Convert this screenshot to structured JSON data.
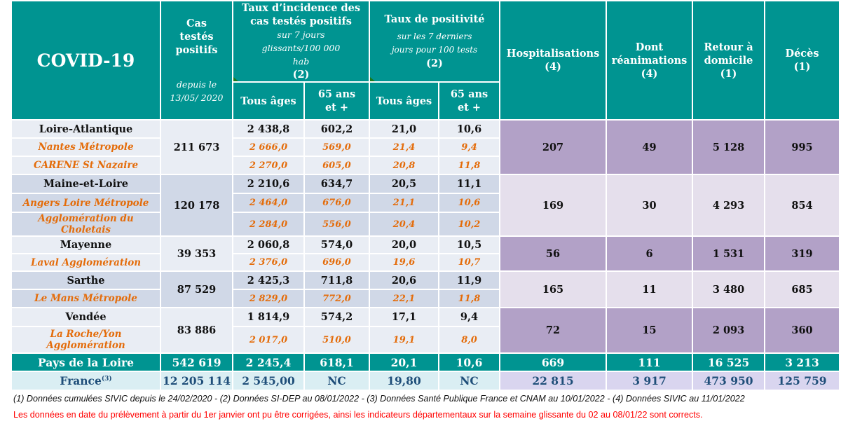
{
  "header": {
    "title": "COVID-19",
    "cas": {
      "label": "Cas testés positifs",
      "sub": "depuis le 13/05/ 2020"
    },
    "incidence": {
      "label": "Taux d’incidence des cas testés positifs",
      "sub": "sur 7 jours glissants/100 000 hab",
      "note": "(2)"
    },
    "positivite": {
      "label": "Taux de positivité",
      "sub": "sur les 7 derniers jours pour 100 tests",
      "note": "(2)"
    },
    "hosp": {
      "label": "Hospitalisations",
      "note": "(4)"
    },
    "rea": {
      "label": "Dont réanimations",
      "note": "(4)"
    },
    "retour": {
      "label": "Retour à domicile",
      "note": "(1)"
    },
    "deces": {
      "label": "Décès",
      "note": "(1)"
    },
    "tous_ages": "Tous âges",
    "plus65": "65 ans et +"
  },
  "departments": [
    {
      "name": "Loire-Atlantique",
      "cas": "211 673",
      "inc_all": "2 438,8",
      "inc_65": "602,2",
      "pos_all": "21,0",
      "pos_65": "10,6",
      "hosp": "207",
      "rea": "49",
      "retour": "5 128",
      "deces": "995",
      "subs": [
        {
          "name": "Nantes Métropole",
          "inc_all": "2 666,0",
          "inc_65": "569,0",
          "pos_all": "21,4",
          "pos_65": "9,4"
        },
        {
          "name": "CARENE St Nazaire",
          "inc_all": "2 270,0",
          "inc_65": "605,0",
          "pos_all": "20,8",
          "pos_65": "11,8"
        }
      ]
    },
    {
      "name": "Maine-et-Loire",
      "cas": "120 178",
      "inc_all": "2 210,6",
      "inc_65": "634,7",
      "pos_all": "20,5",
      "pos_65": "11,1",
      "hosp": "169",
      "rea": "30",
      "retour": "4 293",
      "deces": "854",
      "subs": [
        {
          "name": "Angers Loire Métropole",
          "inc_all": "2 464,0",
          "inc_65": "676,0",
          "pos_all": "21,1",
          "pos_65": "10,6"
        },
        {
          "name": "Agglomération du Choletais",
          "inc_all": "2 284,0",
          "inc_65": "556,0",
          "pos_all": "20,4",
          "pos_65": "10,2"
        }
      ]
    },
    {
      "name": "Mayenne",
      "cas": "39 353",
      "inc_all": "2 060,8",
      "inc_65": "574,0",
      "pos_all": "20,0",
      "pos_65": "10,5",
      "hosp": "56",
      "rea": "6",
      "retour": "1 531",
      "deces": "319",
      "subs": [
        {
          "name": "Laval Agglomération",
          "inc_all": "2 376,0",
          "inc_65": "696,0",
          "pos_all": "19,6",
          "pos_65": "10,7"
        }
      ]
    },
    {
      "name": "Sarthe",
      "cas": "87 529",
      "inc_all": "2 425,3",
      "inc_65": "711,8",
      "pos_all": "20,6",
      "pos_65": "11,9",
      "hosp": "165",
      "rea": "11",
      "retour": "3 480",
      "deces": "685",
      "subs": [
        {
          "name": "Le Mans Métropole",
          "inc_all": "2 829,0",
          "inc_65": "772,0",
          "pos_all": "22,1",
          "pos_65": "11,8"
        }
      ]
    },
    {
      "name": "Vendée",
      "cas": "83 886",
      "inc_all": "1 814,9",
      "inc_65": "574,2",
      "pos_all": "17,1",
      "pos_65": "9,4",
      "hosp": "72",
      "rea": "15",
      "retour": "2 093",
      "deces": "360",
      "subs": [
        {
          "name": "La Roche/Yon Agglomération",
          "inc_all": "2 017,0",
          "inc_65": "510,0",
          "pos_all": "19,1",
          "pos_65": "8,0"
        }
      ]
    }
  ],
  "region": {
    "name": "Pays de la Loire",
    "cas": "542 619",
    "inc_all": "2 245,4",
    "inc_65": "618,1",
    "pos_all": "20,1",
    "pos_65": "10,6",
    "hosp": "669",
    "rea": "111",
    "retour": "16 525",
    "deces": "3 213"
  },
  "france": {
    "name": "France",
    "sup": "(3)",
    "cas": "12 205 114",
    "inc_all": "2 545,00",
    "inc_65": "NC",
    "pos_all": "19,80",
    "pos_65": "NC",
    "hosp": "22 815",
    "rea": "3 917",
    "retour": "473 950",
    "deces": "125 759"
  },
  "footnotes": {
    "sources": "(1) Données cumulées SIVIC depuis le 24/02/2020 - (2) Données SI-DEP  au 08/01/2022 - (3) Données Santé Publique France et CNAM au 10/01/2022 - (4) Données SIVIC au 11/01/2022",
    "warning": "Les données en date du prélèvement à partir du 1er janvier ont pu être corrigées, ainsi les indicateurs départementaux sur la semaine glissante du 02 au 08/01/22 sont corrects."
  },
  "colors": {
    "header": "#009491",
    "sub_text": "#e46c0a",
    "purple_dark": "#b2a1c7",
    "purple_light": "#e5dfec",
    "france_text": "#1f4e79",
    "warning": "#ff0000"
  }
}
